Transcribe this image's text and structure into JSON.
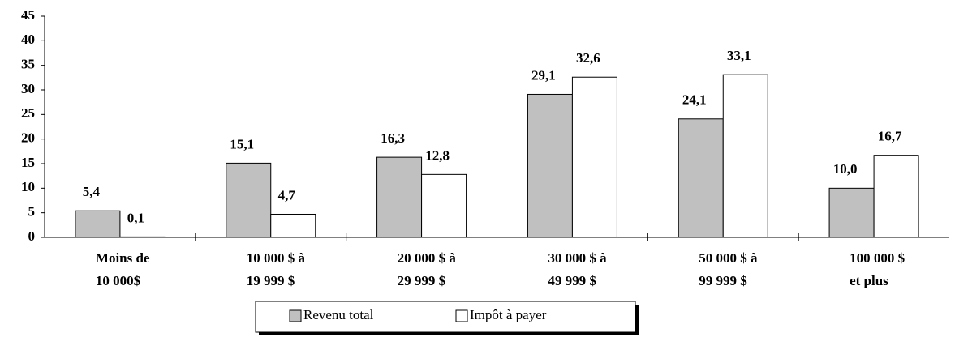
{
  "chart_data": {
    "type": "bar",
    "categories": [
      [
        "Moins de",
        "10 000$"
      ],
      [
        "10 000 $ à",
        "19 999 $"
      ],
      [
        "20 000 $ à",
        "29 999 $"
      ],
      [
        "30 000 $ à",
        "49 999 $"
      ],
      [
        "50 000 $ à",
        "99 999 $"
      ],
      [
        "100 000 $",
        "et  plus"
      ]
    ],
    "series": [
      {
        "name": "Revenu total",
        "color": "#c0c0c0",
        "values": [
          5.4,
          15.1,
          16.3,
          29.1,
          24.1,
          10.0
        ],
        "value_labels": [
          "5,4",
          "15,1",
          "16,3",
          "29,1",
          "24,1",
          "10,0"
        ]
      },
      {
        "name": "Impôt à payer",
        "color": "#ffffff",
        "values": [
          0.1,
          4.7,
          12.8,
          32.6,
          33.1,
          16.7
        ],
        "value_labels": [
          "0,1",
          "4,7",
          "12,8",
          "32,6",
          "33,1",
          "16,7"
        ]
      }
    ],
    "ylim": [
      0,
      45
    ],
    "yticks": [
      0,
      5,
      10,
      15,
      20,
      25,
      30,
      35,
      40,
      45
    ],
    "legend": "bottom"
  }
}
